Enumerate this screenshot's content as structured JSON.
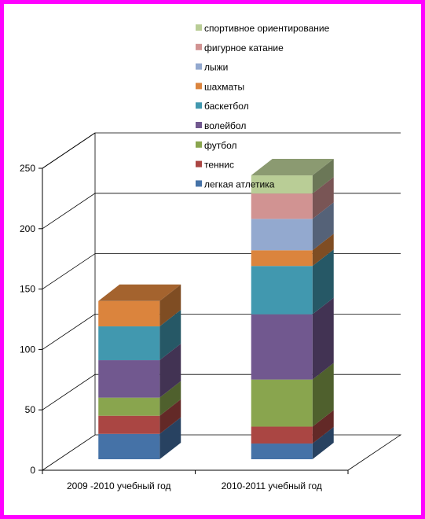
{
  "chart_data": {
    "type": "bar",
    "stacked": true,
    "three_d": true,
    "categories": [
      "2009 -2010 учебный год",
      "2010-2011 учебный год"
    ],
    "series": [
      {
        "name": "легкая атлетика",
        "color": "#4572A7",
        "values": [
          21,
          13
        ]
      },
      {
        "name": "теннис",
        "color": "#AA4643",
        "values": [
          15,
          14
        ]
      },
      {
        "name": "футбол",
        "color": "#89A54E",
        "values": [
          15,
          39
        ]
      },
      {
        "name": "волейбол",
        "color": "#71588F",
        "values": [
          31,
          54
        ]
      },
      {
        "name": "баскетбол",
        "color": "#4198AF",
        "values": [
          28,
          40
        ]
      },
      {
        "name": "шахматы",
        "color": "#DB843D",
        "values": [
          21,
          13
        ]
      },
      {
        "name": "лыжи",
        "color": "#93A9CF",
        "values": [
          0,
          26
        ]
      },
      {
        "name": "фигурное катание",
        "color": "#D19392",
        "values": [
          0,
          21
        ]
      },
      {
        "name": "спортивное ориентирование",
        "color": "#B9CD96",
        "values": [
          0,
          15
        ]
      }
    ],
    "y_ticks": [
      "0",
      "50",
      "100",
      "150",
      "200",
      "250"
    ],
    "ylim": [
      0,
      250
    ],
    "grid": true,
    "legend_position": "top-right"
  }
}
